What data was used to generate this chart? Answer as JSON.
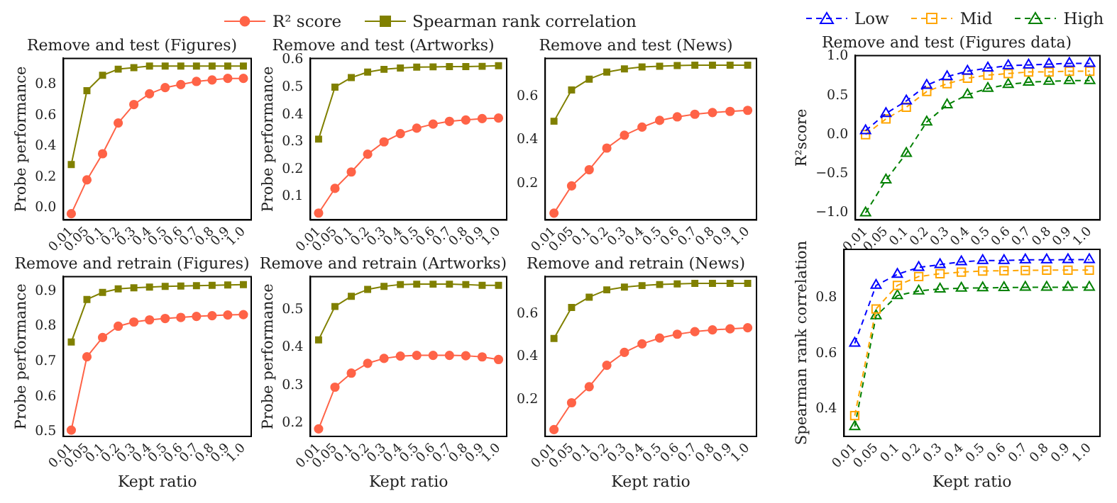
{
  "chart_data": [
    {
      "type": "line",
      "title": "Remove and test (Figures)",
      "ylabel": "Probe performance",
      "categories": [
        "0.01",
        "0.05",
        "0.1",
        "0.2",
        "0.3",
        "0.4",
        "0.5",
        "0.6",
        "0.7",
        "0.8",
        "0.9",
        "1.0"
      ],
      "ylim": [
        -0.08,
        0.97
      ],
      "yticks": [
        {
          "value": 0,
          "label": "0.0"
        },
        0.2,
        0.4,
        0.6,
        0.8
      ],
      "legend": "top",
      "line_style": "solid",
      "series": [
        {
          "name": "R² score",
          "color": "#ff6347",
          "marker": "circle",
          "values": [
            -0.04,
            0.18,
            0.35,
            0.55,
            0.67,
            0.74,
            0.78,
            0.8,
            0.82,
            0.83,
            0.84,
            0.84
          ]
        },
        {
          "name": "Spearman rank correlation",
          "color": "#808000",
          "marker": "square",
          "values": [
            0.28,
            0.76,
            0.86,
            0.9,
            0.91,
            0.92,
            0.92,
            0.92,
            0.92,
            0.92,
            0.92,
            0.92
          ]
        }
      ]
    },
    {
      "type": "line",
      "title": "Remove and test (Artworks)",
      "ylabel": "Probe performance",
      "categories": [
        "0.01",
        "0.05",
        "0.1",
        "0.2",
        "0.3",
        "0.4",
        "0.5",
        "0.6",
        "0.7",
        "0.8",
        "0.9",
        "1.0"
      ],
      "ylim": [
        0.015,
        0.605
      ],
      "yticks": [
        0.1,
        0.2,
        0.3,
        0.4,
        0.5,
        0.6
      ],
      "line_style": "solid",
      "series": [
        {
          "color": "#ff6347",
          "marker": "circle",
          "values": [
            0.04,
            0.13,
            0.19,
            0.255,
            0.3,
            0.33,
            0.35,
            0.365,
            0.375,
            0.38,
            0.385,
            0.387
          ]
        },
        {
          "color": "#808000",
          "marker": "square",
          "values": [
            0.31,
            0.5,
            0.535,
            0.555,
            0.565,
            0.57,
            0.573,
            0.574,
            0.575,
            0.575,
            0.576,
            0.578
          ]
        }
      ]
    },
    {
      "type": "line",
      "title": "Remove and test (News)",
      "categories": [
        "0.01",
        "0.05",
        "0.1",
        "0.2",
        "0.3",
        "0.4",
        "0.5",
        "0.6",
        "0.7",
        "0.8",
        "0.9",
        "1.0"
      ],
      "ylim": [
        0.033,
        0.773
      ],
      "yticks": [
        0.2,
        0.4,
        0.6
      ],
      "line_style": "solid",
      "series": [
        {
          "color": "#ff6347",
          "marker": "circle",
          "values": [
            0.064,
            0.189,
            0.263,
            0.362,
            0.421,
            0.458,
            0.489,
            0.505,
            0.517,
            0.525,
            0.53,
            0.535
          ]
        },
        {
          "color": "#808000",
          "marker": "square",
          "values": [
            0.485,
            0.628,
            0.678,
            0.71,
            0.725,
            0.734,
            0.737,
            0.74,
            0.742,
            0.742,
            0.742,
            0.742
          ]
        }
      ]
    },
    {
      "type": "line",
      "title": "Remove and retrain (Figures)",
      "xlabel": "Kept ratio",
      "ylabel": "Probe performance",
      "categories": [
        "0.01",
        "0.05",
        "0.1",
        "0.2",
        "0.3",
        "0.4",
        "0.5",
        "0.6",
        "0.7",
        "0.8",
        "0.9",
        "1.0"
      ],
      "ylim": [
        0.487,
        0.941
      ],
      "yticks": [
        0.5,
        0.6,
        0.7,
        0.8,
        0.9
      ],
      "line_style": "solid",
      "series": [
        {
          "color": "#ff6347",
          "marker": "circle",
          "values": [
            0.505,
            0.713,
            0.768,
            0.8,
            0.812,
            0.818,
            0.822,
            0.825,
            0.828,
            0.83,
            0.832,
            0.833
          ]
        },
        {
          "color": "#808000",
          "marker": "square",
          "values": [
            0.755,
            0.876,
            0.896,
            0.906,
            0.909,
            0.911,
            0.913,
            0.914,
            0.915,
            0.916,
            0.917,
            0.918
          ]
        }
      ]
    },
    {
      "type": "line",
      "title": "Remove and retrain (Artworks)",
      "xlabel": "Kept ratio",
      "ylabel": "Probe performance",
      "categories": [
        "0.01",
        "0.05",
        "0.1",
        "0.2",
        "0.3",
        "0.4",
        "0.5",
        "0.6",
        "0.7",
        "0.8",
        "0.9",
        "1.0"
      ],
      "ylim": [
        0.165,
        0.587
      ],
      "yticks": [
        0.2,
        0.3,
        0.4,
        0.5
      ],
      "line_style": "solid",
      "series": [
        {
          "color": "#ff6347",
          "marker": "circle",
          "values": [
            0.185,
            0.295,
            0.332,
            0.358,
            0.371,
            0.377,
            0.379,
            0.379,
            0.379,
            0.378,
            0.375,
            0.368
          ]
        },
        {
          "color": "#808000",
          "marker": "square",
          "values": [
            0.42,
            0.508,
            0.535,
            0.553,
            0.561,
            0.566,
            0.567,
            0.567,
            0.567,
            0.566,
            0.564,
            0.564
          ]
        }
      ]
    },
    {
      "type": "line",
      "title": "Remove and retrain (News)",
      "xlabel": "Kept ratio",
      "categories": [
        "0.01",
        "0.05",
        "0.1",
        "0.2",
        "0.3",
        "0.4",
        "0.5",
        "0.6",
        "0.7",
        "0.8",
        "0.9",
        "1.0"
      ],
      "ylim": [
        0.028,
        0.774
      ],
      "yticks": [
        0.2,
        0.4,
        0.6
      ],
      "line_style": "solid",
      "series": [
        {
          "color": "#ff6347",
          "marker": "circle",
          "values": [
            0.06,
            0.185,
            0.26,
            0.36,
            0.42,
            0.46,
            0.487,
            0.505,
            0.517,
            0.525,
            0.53,
            0.535
          ]
        },
        {
          "color": "#808000",
          "marker": "square",
          "values": [
            0.485,
            0.63,
            0.678,
            0.712,
            0.725,
            0.732,
            0.737,
            0.74,
            0.742,
            0.742,
            0.742,
            0.742
          ]
        }
      ]
    },
    {
      "type": "line",
      "title": "Remove and test (Figures data)",
      "ylabel": "R²score",
      "categories": [
        "0.01",
        "0.05",
        "0.1",
        "0.2",
        "0.3",
        "0.4",
        "0.5",
        "0.6",
        "0.7",
        "0.8",
        "0.9",
        "1.0"
      ],
      "ylim": [
        -1.09,
        1.01
      ],
      "yticks": [
        {
          "value": -1,
          "label": "−1.0"
        },
        {
          "value": -0.5,
          "label": "−0.5"
        },
        {
          "value": 0,
          "label": "0.0"
        },
        0.5,
        {
          "value": 1,
          "label": "1.0"
        }
      ],
      "legend": "top",
      "line_style": "dashed",
      "series": [
        {
          "name": "Low",
          "color": "#0000ff",
          "marker": "triangle",
          "values": [
            0.05,
            0.27,
            0.43,
            0.63,
            0.74,
            0.81,
            0.85,
            0.88,
            0.89,
            0.9,
            0.91,
            0.91
          ]
        },
        {
          "name": "Mid",
          "color": "#ffa500",
          "marker": "square",
          "values": [
            0,
            0.2,
            0.35,
            0.55,
            0.65,
            0.72,
            0.76,
            0.78,
            0.8,
            0.8,
            0.81,
            0.81
          ]
        },
        {
          "name": "High",
          "color": "#008000",
          "marker": "triangle",
          "values": [
            -1,
            -0.58,
            -0.24,
            0.16,
            0.38,
            0.51,
            0.59,
            0.64,
            0.67,
            0.68,
            0.69,
            0.69
          ]
        }
      ]
    },
    {
      "type": "line",
      "xlabel": "Kept ratio",
      "ylabel": "Spearman rank correlation",
      "categories": [
        "0.01",
        "0.05",
        "0.1",
        "0.2",
        "0.3",
        "0.4",
        "0.5",
        "0.6",
        "0.7",
        "0.8",
        "0.9",
        "1.0"
      ],
      "ylim": [
        0.3,
        0.975
      ],
      "yticks": [
        0.4,
        0.6,
        0.8
      ],
      "line_style": "dashed",
      "series": [
        {
          "color": "#0000ff",
          "marker": "triangle",
          "values": [
            0.636,
            0.845,
            0.885,
            0.91,
            0.92,
            0.93,
            0.935,
            0.935,
            0.937,
            0.937,
            0.938,
            0.938
          ]
        },
        {
          "color": "#ffa500",
          "marker": "square",
          "values": [
            0.375,
            0.76,
            0.845,
            0.877,
            0.887,
            0.893,
            0.897,
            0.898,
            0.899,
            0.9,
            0.9,
            0.9
          ]
        },
        {
          "color": "#008000",
          "marker": "triangle",
          "values": [
            0.335,
            0.735,
            0.808,
            0.825,
            0.832,
            0.835,
            0.836,
            0.837,
            0.838,
            0.838,
            0.838,
            0.838
          ]
        }
      ]
    }
  ]
}
